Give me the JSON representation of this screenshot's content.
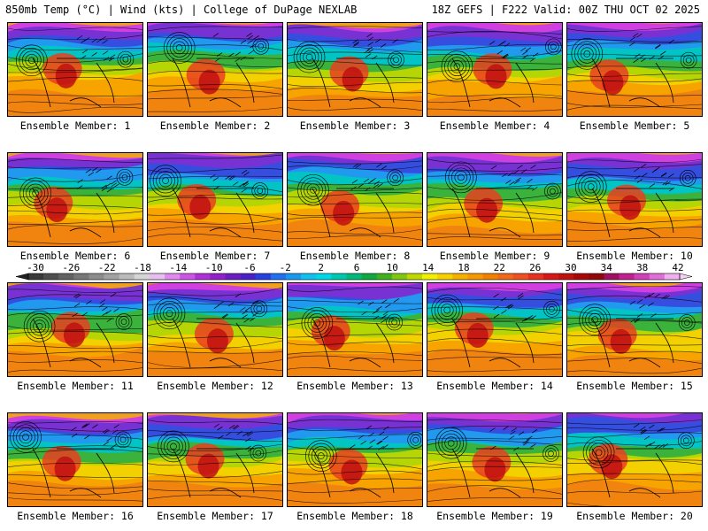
{
  "header": {
    "title_left": "850mb Temp (°C) | Wind (kts) | College of DuPage NEXLAB",
    "title_right": "18Z GEFS | F222 Valid: 00Z THU OCT 02 2025"
  },
  "panels": [
    {
      "label": "Ensemble Member: 1"
    },
    {
      "label": "Ensemble Member: 2"
    },
    {
      "label": "Ensemble Member: 3"
    },
    {
      "label": "Ensemble Member: 4"
    },
    {
      "label": "Ensemble Member: 5"
    },
    {
      "label": "Ensemble Member: 6"
    },
    {
      "label": "Ensemble Member: 7"
    },
    {
      "label": "Ensemble Member: 8"
    },
    {
      "label": "Ensemble Member: 9"
    },
    {
      "label": "Ensemble Member: 10"
    },
    {
      "label": "Ensemble Member: 11"
    },
    {
      "label": "Ensemble Member: 12"
    },
    {
      "label": "Ensemble Member: 13"
    },
    {
      "label": "Ensemble Member: 14"
    },
    {
      "label": "Ensemble Member: 15"
    },
    {
      "label": "Ensemble Member: 16"
    },
    {
      "label": "Ensemble Member: 17"
    },
    {
      "label": "Ensemble Member: 18"
    },
    {
      "label": "Ensemble Member: 19"
    },
    {
      "label": "Ensemble Member: 20"
    }
  ],
  "colorbar": {
    "tick_labels": [
      "-30",
      "-26",
      "-22",
      "-18",
      "-14",
      "-10",
      "-6",
      "-2",
      "2",
      "6",
      "10",
      "14",
      "18",
      "22",
      "26",
      "30",
      "34",
      "38",
      "42"
    ],
    "colors": [
      "#3a3a3a",
      "#4e4e4e",
      "#626262",
      "#777777",
      "#8c8c8c",
      "#a2a2a2",
      "#bbbbbb",
      "#d6d6d6",
      "#e6c0ee",
      "#e089ee",
      "#cc55e8",
      "#b030d8",
      "#9320c8",
      "#6a1ec2",
      "#4a20c8",
      "#2840e0",
      "#2070f0",
      "#1a98f0",
      "#10c0f0",
      "#00d8e8",
      "#00c8b0",
      "#00b878",
      "#10a840",
      "#40b020",
      "#80c810",
      "#c0d800",
      "#f0f000",
      "#f8d000",
      "#f8b000",
      "#f89800",
      "#f08000",
      "#f06818",
      "#f05020",
      "#e83020",
      "#d81818",
      "#c01010",
      "#a80808",
      "#900808",
      "#a01060",
      "#c02090",
      "#d040b8",
      "#e070d8",
      "#f0b0f0"
    ]
  }
}
